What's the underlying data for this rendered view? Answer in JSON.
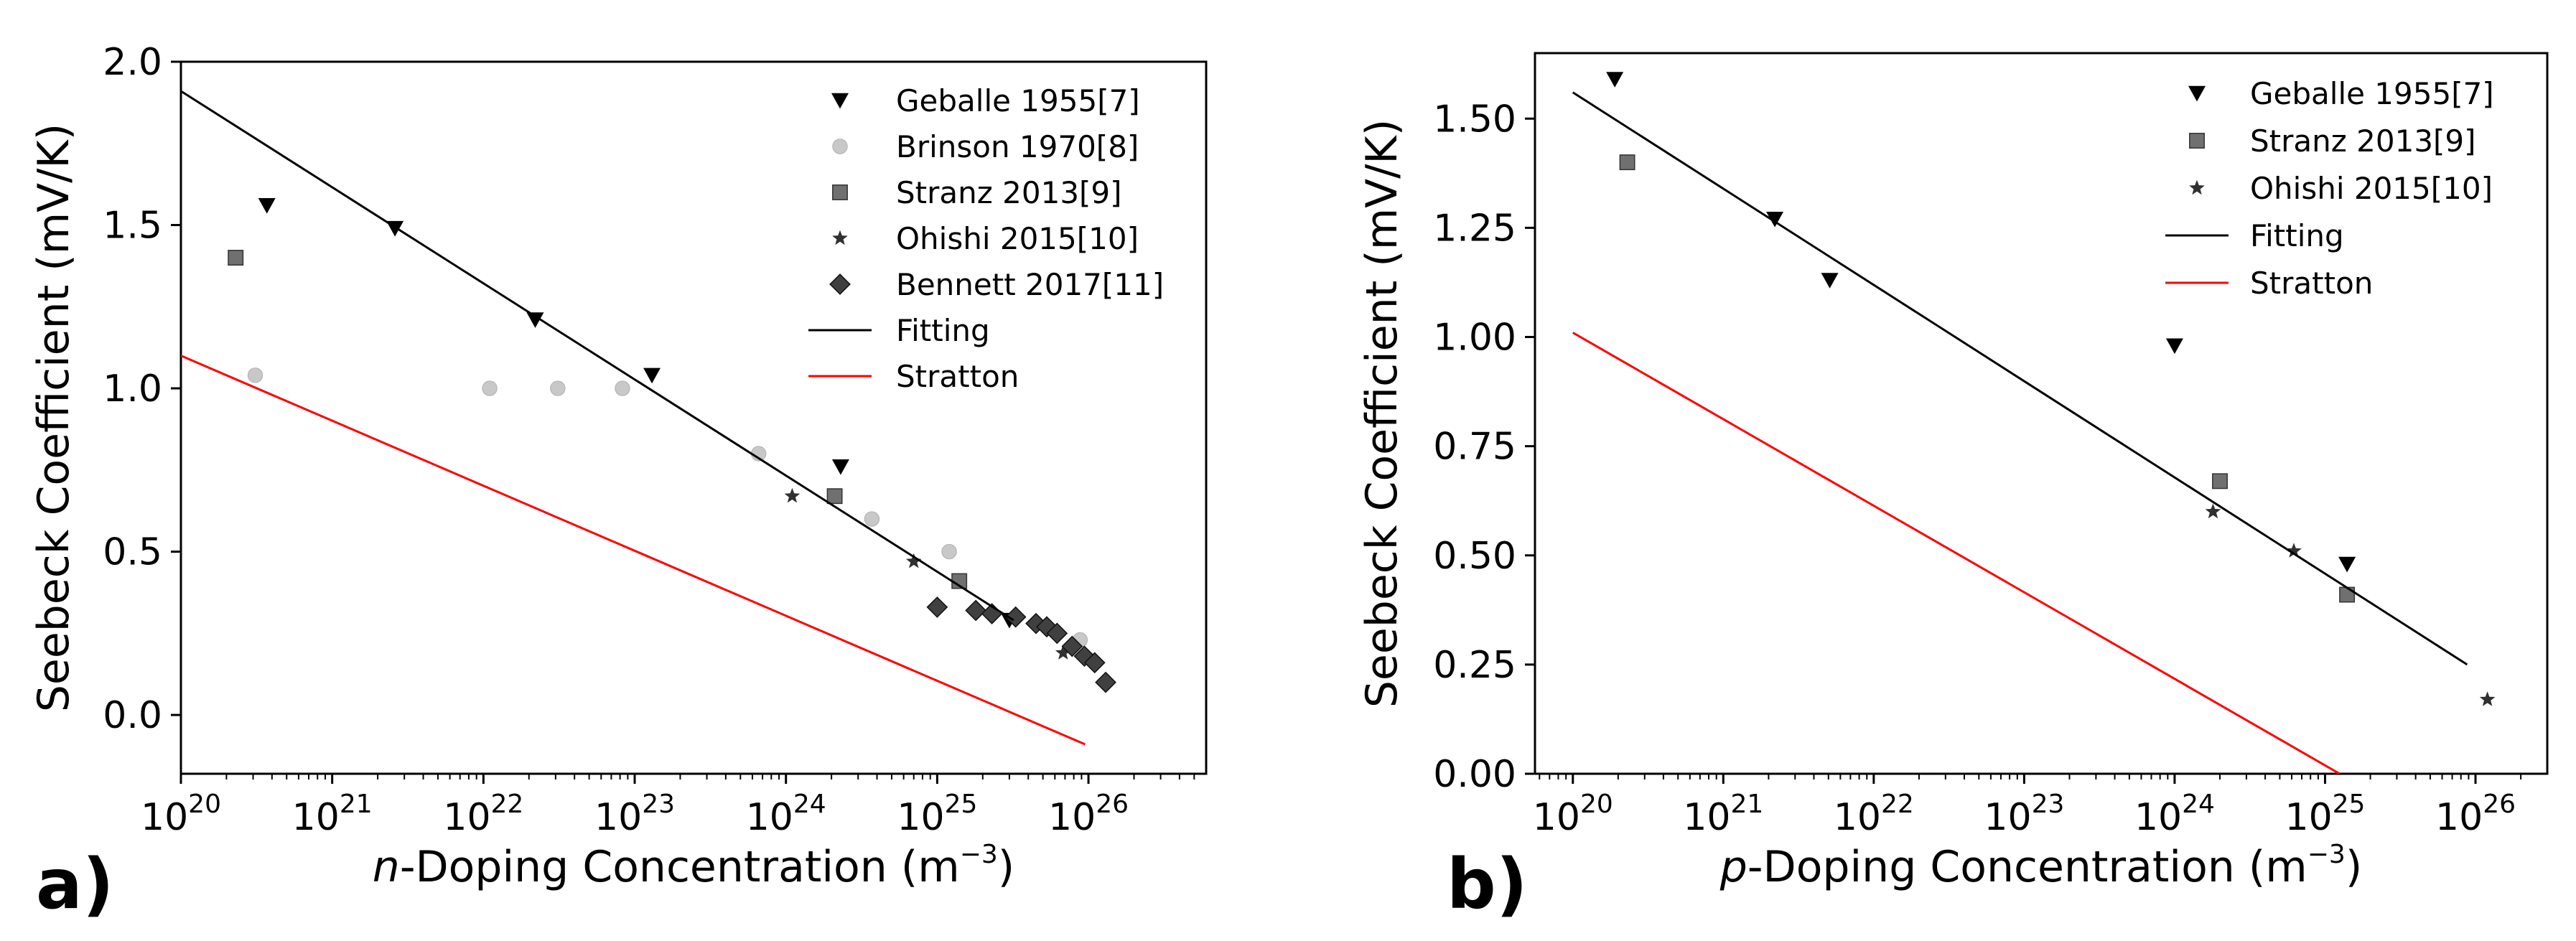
{
  "chart_data": [
    {
      "type": "scatter",
      "panel_label": "a)",
      "xlabel": {
        "italic": "n",
        "rest": "-Doping Concentration (m",
        "sup": "−3",
        "close": ")"
      },
      "ylabel": "Seebeck Coefficient (mV/K)",
      "xscale": "log",
      "xlim": [
        1e+20,
        6e+26
      ],
      "ylim": [
        -0.18,
        2.0
      ],
      "xticks": [
        20,
        21,
        22,
        23,
        24,
        25,
        26
      ],
      "yticks": [
        0.0,
        0.5,
        1.0,
        1.5,
        2.0
      ],
      "ytick_labels": [
        "0.0",
        "0.5",
        "1.0",
        "1.5",
        "2.0"
      ],
      "legend_position": "top-right",
      "series": [
        {
          "name": "Geballe 1955[7]",
          "marker": "triangle-down",
          "color": "#000000",
          "points": [
            [
              3.7e+20,
              1.56
            ],
            [
              2.6e+21,
              1.49
            ],
            [
              2.2e+22,
              1.21
            ],
            [
              1.3e+23,
              1.04
            ],
            [
              2.3e+24,
              0.76
            ],
            [
              3e+25,
              0.29
            ]
          ]
        },
        {
          "name": "Brinson 1970[8]",
          "marker": "circle",
          "color": "#c8c8c8",
          "points": [
            [
              3.1e+20,
              1.04
            ],
            [
              1.1e+22,
              1.0
            ],
            [
              3.1e+22,
              1.0
            ],
            [
              8.3e+22,
              1.0
            ],
            [
              6.6e+23,
              0.8
            ],
            [
              3.7e+24,
              0.6
            ],
            [
              1.2e+25,
              0.5
            ],
            [
              8.8e+25,
              0.23
            ]
          ]
        },
        {
          "name": "Stranz 2013[9]",
          "marker": "square",
          "color": "#707070",
          "points": [
            [
              2.3e+20,
              1.4
            ],
            [
              2.1e+24,
              0.67
            ],
            [
              1.4e+25,
              0.41
            ]
          ]
        },
        {
          "name": "Ohishi 2015[10]",
          "marker": "star",
          "color": "#303030",
          "points": [
            [
              1.1e+24,
              0.67
            ],
            [
              7e+24,
              0.47
            ],
            [
              6.8e+25,
              0.19
            ]
          ]
        },
        {
          "name": "Bennett 2017[11]",
          "marker": "diamond",
          "color": "#404040",
          "points": [
            [
              1e+25,
              0.33
            ],
            [
              1.8e+25,
              0.32
            ],
            [
              2.3e+25,
              0.31
            ],
            [
              3.3e+25,
              0.3
            ],
            [
              4.5e+25,
              0.28
            ],
            [
              5.3e+25,
              0.27
            ],
            [
              6.2e+25,
              0.25
            ],
            [
              7.8e+25,
              0.21
            ],
            [
              9.4e+25,
              0.18
            ],
            [
              1.1e+26,
              0.16
            ],
            [
              1.3e+26,
              0.1
            ]
          ]
        },
        {
          "name": "Fitting",
          "line": true,
          "color": "#000000",
          "points": [
            [
              1e+20,
              1.91
            ],
            [
              3.2e+25,
              0.29
            ]
          ]
        },
        {
          "name": "Stratton",
          "line": true,
          "color": "#ff0000",
          "points": [
            [
              1e+20,
              1.1
            ],
            [
              9.5e+25,
              -0.09
            ]
          ]
        }
      ]
    },
    {
      "type": "scatter",
      "panel_label": "b)",
      "xlabel": {
        "italic": "p",
        "rest": "-Doping Concentration (m",
        "sup": "−3",
        "close": ")"
      },
      "ylabel": "Seebeck Coefficient (mV/K)",
      "xscale": "log",
      "xlim": [
        5.6e+19,
        3e+26
      ],
      "ylim": [
        0.0,
        1.65
      ],
      "xticks": [
        20,
        21,
        22,
        23,
        24,
        25,
        26
      ],
      "yticks": [
        0.0,
        0.25,
        0.5,
        0.75,
        1.0,
        1.25,
        1.5
      ],
      "ytick_labels": [
        "0.00",
        "0.25",
        "0.50",
        "0.75",
        "1.00",
        "1.25",
        "1.50"
      ],
      "legend_position": "top-right",
      "series": [
        {
          "name": "Geballe 1955[7]",
          "marker": "triangle-down",
          "color": "#000000",
          "points": [
            [
              1.9e+20,
              1.59
            ],
            [
              2.2e+21,
              1.27
            ],
            [
              5.1e+21,
              1.13
            ],
            [
              1e+24,
              0.98
            ],
            [
              1.4e+25,
              0.48
            ]
          ]
        },
        {
          "name": "Stranz 2013[9]",
          "marker": "square",
          "color": "#707070",
          "points": [
            [
              2.3e+20,
              1.4
            ],
            [
              2e+24,
              0.67
            ],
            [
              1.4e+25,
              0.41
            ]
          ]
        },
        {
          "name": "Ohishi 2015[10]",
          "marker": "star",
          "color": "#303030",
          "points": [
            [
              1.8e+24,
              0.6
            ],
            [
              6.2e+24,
              0.51
            ],
            [
              1.2e+26,
              0.17
            ]
          ]
        },
        {
          "name": "Fitting",
          "line": true,
          "color": "#000000",
          "points": [
            [
              1e+20,
              1.56
            ],
            [
              8.8e+25,
              0.25
            ]
          ]
        },
        {
          "name": "Stratton",
          "line": true,
          "color": "#ff0000",
          "points": [
            [
              1e+20,
              1.01
            ],
            [
              1.25e+25,
              0.0
            ]
          ]
        }
      ]
    }
  ]
}
